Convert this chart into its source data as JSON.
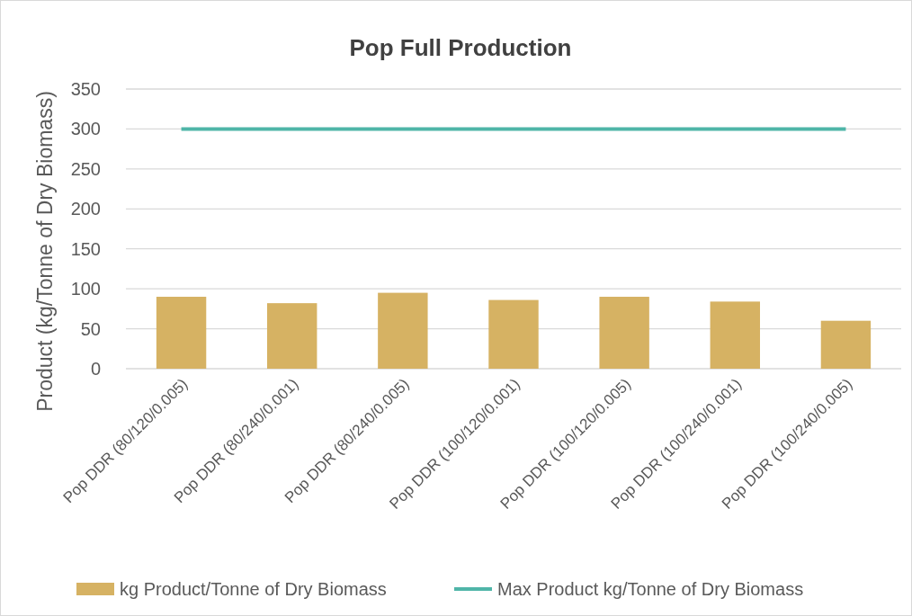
{
  "chart_data": {
    "type": "bar",
    "title": "Pop Full Production",
    "ylabel": "Product (kg/Tonne of Dry Biomass)",
    "categories": [
      "Pop DDR (80/120/0.005)",
      "Pop DDR (80/240/0.001)",
      "Pop DDR (80/240/0.005)",
      "Pop DDR (100/120/0.001)",
      "Pop DDR (100/120/0.005)",
      "Pop DDR (100/240/0.001)",
      "Pop DDR (100/240/0.005)"
    ],
    "series": [
      {
        "name": "kg Product/Tonne of Dry Biomass",
        "color": "#d6b263",
        "values": [
          90,
          82,
          95,
          86,
          90,
          84,
          60
        ]
      },
      {
        "name": "Max Product kg/Tonne of Dry Biomass",
        "type": "line",
        "color": "#4fb5a8",
        "values": [
          300,
          300,
          300,
          300,
          300,
          300,
          300
        ]
      }
    ],
    "ylim": [
      0,
      350
    ],
    "yticks": [
      0,
      50,
      100,
      150,
      200,
      250,
      300,
      350
    ],
    "grid": "y",
    "legend": "bottom",
    "marker": "none"
  }
}
